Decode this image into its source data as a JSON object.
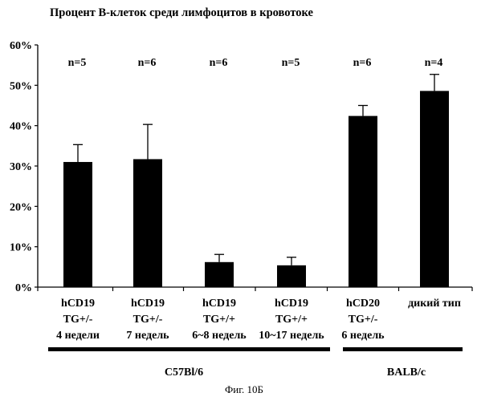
{
  "chart_data": {
    "type": "bar",
    "title": "Процент B-клеток среди лимфоцитов в кровотоке",
    "ylim": [
      0,
      60
    ],
    "ytick_values": [
      0,
      10,
      20,
      30,
      40,
      50,
      60
    ],
    "ytick_labels": [
      "0%",
      "10%",
      "20%",
      "30%",
      "40%",
      "50%",
      "60%"
    ],
    "category_labels": [
      [
        "hCD19",
        "TG+/-",
        "4 недели"
      ],
      [
        "hCD19",
        "TG+/-",
        "7 недель"
      ],
      [
        "hCD19",
        "TG+/+",
        "6~8 недель"
      ],
      [
        "hCD19",
        "TG+/+",
        "10~17 недель"
      ],
      [
        "hCD20",
        "TG+/-",
        "6 недель"
      ],
      [
        "дикий тип"
      ]
    ],
    "values": [
      31,
      31.7,
      6.2,
      5.4,
      42.4,
      48.6
    ],
    "error_upper": [
      35.3,
      40.3,
      8.1,
      7.4,
      45.0,
      52.7
    ],
    "n_labels": [
      "n=5",
      "n=6",
      "n=6",
      "n=5",
      "n=6",
      "n=4"
    ],
    "groups": [
      {
        "label": "C57Bl/6",
        "first": 0,
        "last": 3
      },
      {
        "label": "BALB/c",
        "first": 4,
        "last": 5
      }
    ],
    "caption": "Фиг. 10Б",
    "bar_color": "#000000",
    "grid": false
  }
}
